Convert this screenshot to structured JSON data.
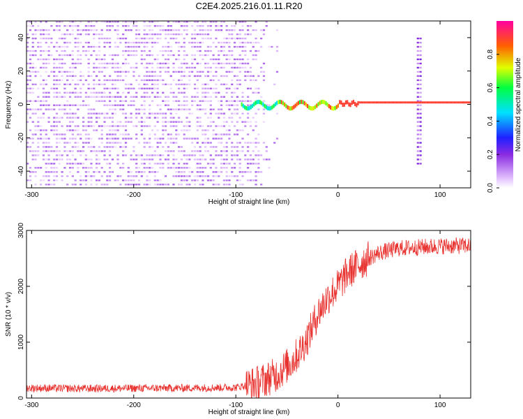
{
  "title": "C2E4.2025.216.01.11.R20",
  "chart_data": [
    {
      "type": "heatmap",
      "xlabel": "Height of straight line (km)",
      "ylabel": "Frequency (Hz)",
      "xlim": [
        -305,
        130
      ],
      "ylim": [
        -50,
        50
      ],
      "xticks": [
        -300,
        -200,
        -100,
        0,
        100
      ],
      "yticks": [
        -40,
        -20,
        0,
        20,
        40
      ],
      "colorbar": {
        "label": "Normalized spectral amplitude",
        "range": [
          0,
          1
        ],
        "ticks": [
          0.0,
          0.2,
          0.4,
          0.6,
          0.8
        ],
        "tick_labels": [
          "0.0",
          "0.2",
          "0.4",
          "0.6",
          "0.8"
        ]
      },
      "features": [
        {
          "description": "broadband noise",
          "x_range": [
            -305,
            -60
          ],
          "amplitude": 0.1
        },
        {
          "description": "signal line at 0 Hz",
          "x_range": [
            -95,
            130
          ],
          "freq_hz": 0,
          "amplitude": 0.9
        },
        {
          "description": "vertical stripe",
          "x_center": 78,
          "freq_range": [
            -40,
            38
          ],
          "amplitude": 0.15
        }
      ]
    },
    {
      "type": "line",
      "xlabel": "Height of straight line (km)",
      "ylabel": "SNR (10 * v/v)",
      "xlim": [
        -305,
        130
      ],
      "ylim": [
        0,
        3000
      ],
      "xticks": [
        -300,
        -200,
        -100,
        0,
        100
      ],
      "yticks": [
        0,
        1000,
        2000,
        3000
      ],
      "series": [
        {
          "color": "#e8322f",
          "points": [
            [
              -305,
              180
            ],
            [
              -250,
              170
            ],
            [
              -200,
              175
            ],
            [
              -150,
              180
            ],
            [
              -100,
              190
            ],
            [
              -80,
              260
            ],
            [
              -60,
              420
            ],
            [
              -45,
              650
            ],
            [
              -35,
              900
            ],
            [
              -28,
              1150
            ],
            [
              -20,
              1500
            ],
            [
              -10,
              1800
            ],
            [
              0,
              2000
            ],
            [
              10,
              2250
            ],
            [
              25,
              2450
            ],
            [
              40,
              2600
            ],
            [
              60,
              2680
            ],
            [
              80,
              2700
            ],
            [
              100,
              2720
            ],
            [
              130,
              2730
            ]
          ]
        }
      ]
    }
  ]
}
